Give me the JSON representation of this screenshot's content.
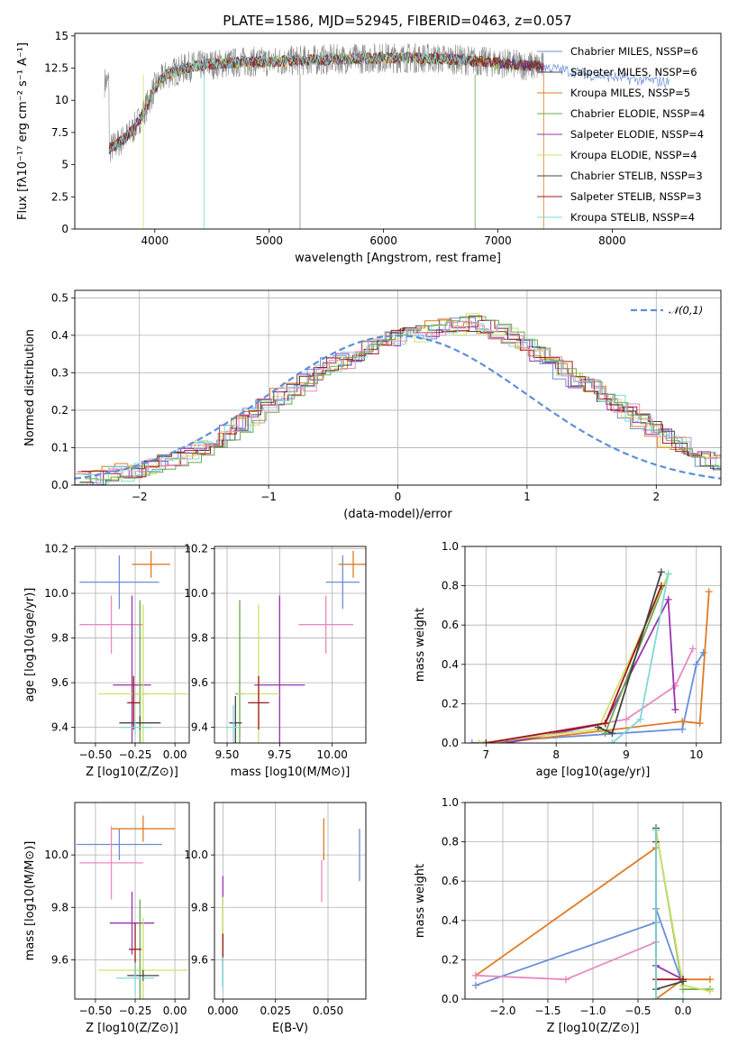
{
  "figure": {
    "title": "PLATE=1586, MJD=52945, FIBERID=0463, z=0.057"
  },
  "colors": {
    "Chabrier MILES": "#6a8fd8",
    "Salpeter MILES": "#4a4a4a",
    "Kroupa MILES": "#e07b24",
    "Chabrier ELODIE": "#6aa84f",
    "Salpeter ELODIE": "#9a32b0",
    "Kroupa ELODIE": "#cfe06a",
    "Chabrier STELIB": "#444444",
    "Salpeter STELIB": "#a01818",
    "Kroupa STELIB": "#7fd8d8",
    "data": "#8a8a8a",
    "gauss": "#5b8fd8"
  },
  "chart_data": [
    {
      "id": "spectrum",
      "type": "line",
      "title": "PLATE=1586, MJD=52945, FIBERID=0463, z=0.057",
      "xlabel": "wavelength [Angstrom, rest frame]",
      "ylabel": "Flux [fλ10⁻¹⁷ erg cm⁻² s⁻¹ A⁻¹]",
      "xlim": [
        3300,
        8950
      ],
      "ylim": [
        0,
        15.2
      ],
      "xticks": [
        4000,
        5000,
        6000,
        7000,
        8000
      ],
      "yticks": [
        0.0,
        2.5,
        5.0,
        7.5,
        10.0,
        12.5,
        15.0
      ],
      "grid": false,
      "legend_position": "top-right",
      "legend": [
        "Chabrier MILES, NSSP=6",
        "Salpeter MILES, NSSP=6",
        "Kroupa MILES, NSSP=5",
        "Chabrier ELODIE, NSSP=4",
        "Salpeter ELODIE, NSSP=4",
        "Kroupa ELODIE, NSSP=4",
        "Chabrier STELIB, NSSP=3",
        "Salpeter STELIB, NSSP=3",
        "Kroupa STELIB, NSSP=4"
      ],
      "continuum": [
        [
          3600,
          6.2
        ],
        [
          3700,
          6.8
        ],
        [
          3800,
          7.6
        ],
        [
          3900,
          9.0
        ],
        [
          4000,
          11.0
        ],
        [
          4100,
          12.0
        ],
        [
          4300,
          12.6
        ],
        [
          4500,
          12.8
        ],
        [
          4800,
          13.0
        ],
        [
          5000,
          13.0
        ],
        [
          5300,
          13.1
        ],
        [
          5600,
          13.2
        ],
        [
          6000,
          13.3
        ],
        [
          6300,
          13.3
        ],
        [
          6600,
          13.2
        ],
        [
          7000,
          12.9
        ],
        [
          7400,
          12.6
        ],
        [
          7800,
          12.0
        ],
        [
          8200,
          11.6
        ],
        [
          8500,
          11.4
        ]
      ],
      "model_ranges": [
        [
          3600,
          8500
        ],
        [
          3600,
          7400
        ],
        [
          3600,
          7000
        ],
        [
          3600,
          7400
        ],
        [
          3600,
          7400
        ],
        [
          3900,
          7000
        ],
        [
          3600,
          7400
        ],
        [
          3600,
          7400
        ],
        [
          3600,
          6800
        ]
      ],
      "data_range": [
        3560,
        7400
      ]
    },
    {
      "id": "residuals",
      "type": "line",
      "xlabel": "(data-model)/error",
      "ylabel": "Normed distribution",
      "xlim": [
        -2.5,
        2.5
      ],
      "ylim": [
        0,
        0.52
      ],
      "xticks": [
        -2,
        -1,
        0,
        1,
        2
      ],
      "yticks": [
        0.0,
        0.1,
        0.2,
        0.3,
        0.4,
        0.5
      ],
      "grid": true,
      "legend_position": "top-right",
      "legend": [
        "𝒩(0,1)"
      ],
      "bin_width": 0.1,
      "bin_start": -2.5,
      "histograms": [
        [
          0.02,
          0.02,
          0.03,
          0.03,
          0.04,
          0.05,
          0.06,
          0.07,
          0.08,
          0.1,
          0.12,
          0.14,
          0.16,
          0.19,
          0.21,
          0.23,
          0.25,
          0.28,
          0.3,
          0.32,
          0.34,
          0.35,
          0.37,
          0.38,
          0.39,
          0.4,
          0.41,
          0.41,
          0.42,
          0.43,
          0.43,
          0.42,
          0.41,
          0.39,
          0.37,
          0.35,
          0.32,
          0.3,
          0.28,
          0.27,
          0.24,
          0.22,
          0.19,
          0.17,
          0.15,
          0.13,
          0.11,
          0.09,
          0.07,
          0.06
        ],
        [
          0.02,
          0.02,
          0.03,
          0.04,
          0.04,
          0.05,
          0.06,
          0.07,
          0.09,
          0.1,
          0.12,
          0.14,
          0.17,
          0.18,
          0.21,
          0.24,
          0.26,
          0.27,
          0.3,
          0.32,
          0.33,
          0.36,
          0.37,
          0.38,
          0.4,
          0.4,
          0.4,
          0.42,
          0.43,
          0.42,
          0.44,
          0.42,
          0.41,
          0.4,
          0.38,
          0.35,
          0.33,
          0.31,
          0.28,
          0.26,
          0.25,
          0.21,
          0.2,
          0.17,
          0.15,
          0.12,
          0.11,
          0.09,
          0.08,
          0.06
        ]
      ]
    },
    {
      "id": "age-vs-Z",
      "type": "scatter",
      "xlabel": "Z [log10(Z/Z⊙)]",
      "ylabel": "age  [log10(age/yr)]",
      "xlim": [
        -0.63,
        0.09
      ],
      "ylim": [
        9.33,
        10.21
      ],
      "xticks": [
        -0.5,
        -0.25,
        0.0
      ],
      "yticks": [
        9.4,
        9.6,
        9.8,
        10.0,
        10.2
      ],
      "grid": true,
      "points": [
        {
          "x": -0.35,
          "y": 10.05,
          "xerr": 0.25,
          "yerr": 0.12,
          "color": "#6a8fd8"
        },
        {
          "x": -0.15,
          "y": 10.13,
          "xerr": 0.12,
          "yerr": 0.06,
          "color": "#e07b24"
        },
        {
          "x": -0.4,
          "y": 9.86,
          "xerr": 0.2,
          "yerr": 0.13,
          "color": "#e88ac0"
        },
        {
          "x": -0.27,
          "y": 9.59,
          "xerr": 0.12,
          "yerr": 0.4,
          "color": "#9a32b0"
        },
        {
          "x": -0.22,
          "y": 9.55,
          "xerr": 0.05,
          "yerr": 0.42,
          "color": "#6aa84f"
        },
        {
          "x": -0.2,
          "y": 9.55,
          "xerr": 0.28,
          "yerr": 0.4,
          "color": "#cfe06a"
        },
        {
          "x": -0.26,
          "y": 9.51,
          "xerr": 0.04,
          "yerr": 0.12,
          "color": "#a01818"
        },
        {
          "x": -0.22,
          "y": 9.42,
          "xerr": 0.13,
          "yerr": 0.03,
          "color": "#444444"
        },
        {
          "x": -0.25,
          "y": 9.4,
          "xerr": 0.1,
          "yerr": 0.03,
          "color": "#7fd8d8"
        }
      ]
    },
    {
      "id": "age-vs-mass",
      "type": "scatter",
      "xlabel": "mass [log10(M/M⊙)]",
      "ylabel": "",
      "xlim": [
        9.44,
        10.16
      ],
      "ylim": [
        9.33,
        10.21
      ],
      "xticks": [
        9.5,
        9.75,
        10.0
      ],
      "yticks": [
        9.4,
        9.6,
        9.8,
        10.0,
        10.2
      ],
      "grid": true,
      "points": [
        {
          "x": 10.05,
          "y": 10.05,
          "xerr": 0.08,
          "yerr": 0.12,
          "color": "#6a8fd8"
        },
        {
          "x": 10.1,
          "y": 10.13,
          "xerr": 0.07,
          "yerr": 0.06,
          "color": "#e07b24"
        },
        {
          "x": 9.97,
          "y": 9.86,
          "xerr": 0.13,
          "yerr": 0.13,
          "color": "#e88ac0"
        },
        {
          "x": 9.75,
          "y": 9.59,
          "xerr": 0.12,
          "yerr": 0.4,
          "color": "#9a32b0"
        },
        {
          "x": 9.56,
          "y": 9.55,
          "xerr": 0.02,
          "yerr": 0.42,
          "color": "#6aa84f"
        },
        {
          "x": 9.65,
          "y": 9.55,
          "xerr": 0.1,
          "yerr": 0.4,
          "color": "#cfe06a"
        },
        {
          "x": 9.65,
          "y": 9.51,
          "xerr": 0.05,
          "yerr": 0.12,
          "color": "#a01818"
        },
        {
          "x": 9.54,
          "y": 9.42,
          "xerr": 0.03,
          "yerr": 0.12,
          "color": "#444444"
        },
        {
          "x": 9.53,
          "y": 9.4,
          "xerr": 0.03,
          "yerr": 0.1,
          "color": "#7fd8d8"
        }
      ]
    },
    {
      "id": "weight-vs-age",
      "type": "line",
      "xlabel": "age  [log10(age/yr)]",
      "ylabel": "mass weight",
      "xlim": [
        6.7,
        10.35
      ],
      "ylim": [
        0,
        1.0
      ],
      "xticks": [
        7,
        8,
        9,
        10
      ],
      "yticks": [
        0.0,
        0.2,
        0.4,
        0.6,
        0.8,
        1.0
      ],
      "grid": true,
      "series": [
        {
          "color": "#6a8fd8",
          "points": [
            [
              6.8,
              0.0
            ],
            [
              9.8,
              0.07
            ],
            [
              10.0,
              0.4
            ],
            [
              10.1,
              0.46
            ]
          ]
        },
        {
          "color": "#e07b24",
          "points": [
            [
              7.2,
              0.0
            ],
            [
              9.8,
              0.11
            ],
            [
              10.05,
              0.1
            ],
            [
              10.18,
              0.77
            ]
          ]
        },
        {
          "color": "#e88ac0",
          "points": [
            [
              7.0,
              0.0
            ],
            [
              9.0,
              0.12
            ],
            [
              9.7,
              0.29
            ],
            [
              9.95,
              0.48
            ]
          ]
        },
        {
          "color": "#9a32b0",
          "points": [
            [
              7.3,
              0.0
            ],
            [
              8.7,
              0.1
            ],
            [
              9.6,
              0.73
            ],
            [
              9.7,
              0.17
            ]
          ]
        },
        {
          "color": "#6aa84f",
          "points": [
            [
              8.7,
              0.05
            ],
            [
              9.6,
              0.86
            ]
          ]
        },
        {
          "color": "#cfe06a",
          "points": [
            [
              6.9,
              0.0
            ],
            [
              8.6,
              0.07
            ],
            [
              9.6,
              0.86
            ]
          ]
        },
        {
          "color": "#a01818",
          "points": [
            [
              7.0,
              0.0
            ],
            [
              8.7,
              0.1
            ],
            [
              9.5,
              0.8
            ]
          ]
        },
        {
          "color": "#444444",
          "points": [
            [
              8.6,
              0.08
            ],
            [
              8.8,
              0.05
            ],
            [
              9.5,
              0.87
            ]
          ]
        },
        {
          "color": "#7fd8d8",
          "points": [
            [
              8.8,
              0.0
            ],
            [
              9.2,
              0.12
            ],
            [
              9.6,
              0.86
            ]
          ]
        }
      ]
    },
    {
      "id": "mass-vs-Z",
      "type": "scatter",
      "xlabel": "Z [log10(Z/Z⊙)]",
      "ylabel": "mass [log10(M/M⊙)]",
      "xlim": [
        -0.63,
        0.09
      ],
      "ylim": [
        9.45,
        10.2
      ],
      "xticks": [
        -0.5,
        -0.25,
        0.0
      ],
      "yticks": [
        9.6,
        9.8,
        10.0
      ],
      "grid": true,
      "points": [
        {
          "x": -0.35,
          "y": 10.04,
          "xerr": 0.27,
          "yerr": 0.06,
          "color": "#6a8fd8"
        },
        {
          "x": -0.2,
          "y": 10.1,
          "xerr": 0.2,
          "yerr": 0.05,
          "color": "#e07b24"
        },
        {
          "x": -0.4,
          "y": 9.97,
          "xerr": 0.2,
          "yerr": 0.14,
          "color": "#e88ac0"
        },
        {
          "x": -0.27,
          "y": 9.74,
          "xerr": 0.14,
          "yerr": 0.12,
          "color": "#9a32b0"
        },
        {
          "x": -0.22,
          "y": 9.56,
          "xerr": 0.02,
          "yerr": 0.27,
          "color": "#6aa84f"
        },
        {
          "x": -0.2,
          "y": 9.56,
          "xerr": 0.28,
          "yerr": 0.2,
          "color": "#cfe06a"
        },
        {
          "x": -0.25,
          "y": 9.64,
          "xerr": 0.04,
          "yerr": 0.1,
          "color": "#a01818"
        },
        {
          "x": -0.2,
          "y": 9.54,
          "xerr": 0.1,
          "yerr": 0.02,
          "color": "#444444"
        },
        {
          "x": -0.25,
          "y": 9.53,
          "xerr": 0.12,
          "yerr": 0.06,
          "color": "#7fd8d8"
        }
      ]
    },
    {
      "id": "mass-vs-EBV",
      "type": "scatter",
      "xlabel": "E(B-V)",
      "ylabel": "",
      "xlim": [
        -0.004,
        0.068
      ],
      "ylim": [
        9.45,
        10.2
      ],
      "xticks": [
        0.0,
        0.025,
        0.05
      ],
      "yticks": [
        9.6,
        9.8,
        10.0
      ],
      "grid": true,
      "points": [
        {
          "x": 0.065,
          "y": 10.0,
          "xerr": 0.0,
          "yerr": 0.1,
          "color": "#6a8fd8"
        },
        {
          "x": 0.048,
          "y": 10.06,
          "xerr": 0.0,
          "yerr": 0.08,
          "color": "#e07b24"
        },
        {
          "x": 0.047,
          "y": 9.9,
          "xerr": 0.0,
          "yerr": 0.08,
          "color": "#e88ac0"
        },
        {
          "x": 0.0,
          "y": 9.8,
          "xerr": 0.0,
          "yerr": 0.12,
          "color": "#9a32b0"
        },
        {
          "x": 0.0,
          "y": 9.7,
          "xerr": 0.0,
          "yerr": 0.1,
          "color": "#6aa84f"
        },
        {
          "x": 0.0,
          "y": 9.74,
          "xerr": 0.0,
          "yerr": 0.1,
          "color": "#cfe06a"
        },
        {
          "x": 0.0,
          "y": 9.64,
          "xerr": 0.0,
          "yerr": 0.06,
          "color": "#a01818"
        },
        {
          "x": 0.0,
          "y": 9.55,
          "xerr": 0.0,
          "yerr": 0.05,
          "color": "#444444"
        },
        {
          "x": 0.0,
          "y": 9.55,
          "xerr": 0.0,
          "yerr": 0.06,
          "color": "#7fd8d8"
        }
      ]
    },
    {
      "id": "weight-vs-Z",
      "type": "line",
      "xlabel": "Z [log10(Z/Z⊙)]",
      "ylabel": "mass weight",
      "xlim": [
        -2.42,
        0.42
      ],
      "ylim": [
        0,
        1.0
      ],
      "xticks": [
        -2.0,
        -1.5,
        -1.0,
        -0.5,
        0.0
      ],
      "yticks": [
        0.0,
        0.2,
        0.4,
        0.6,
        0.8,
        1.0
      ],
      "grid": true,
      "series": [
        {
          "color": "#6a8fd8",
          "points": [
            [
              -2.3,
              0.07
            ],
            [
              -0.3,
              0.39
            ],
            [
              -0.3,
              0.46
            ],
            [
              0.0,
              0.07
            ]
          ]
        },
        {
          "color": "#e07b24",
          "points": [
            [
              -2.3,
              0.12
            ],
            [
              -0.3,
              0.77
            ],
            [
              -0.3,
              0.0
            ],
            [
              0.0,
              0.1
            ],
            [
              0.3,
              0.1
            ]
          ]
        },
        {
          "color": "#e88ac0",
          "points": [
            [
              -2.3,
              0.12
            ],
            [
              -1.3,
              0.1
            ],
            [
              -0.3,
              0.29
            ],
            [
              -0.3,
              0.0
            ]
          ]
        },
        {
          "color": "#9a32b0",
          "points": [
            [
              -0.3,
              0.17
            ],
            [
              0.0,
              0.1
            ]
          ]
        },
        {
          "color": "#6aa84f",
          "points": [
            [
              -0.3,
              0.86
            ],
            [
              0.0,
              0.05
            ],
            [
              0.3,
              0.05
            ]
          ]
        },
        {
          "color": "#cfe06a",
          "points": [
            [
              -0.3,
              0.86
            ],
            [
              0.0,
              0.07
            ],
            [
              0.3,
              0.04
            ]
          ]
        },
        {
          "color": "#a01818",
          "points": [
            [
              -0.3,
              0.8
            ],
            [
              -0.3,
              0.1
            ],
            [
              0.0,
              0.1
            ]
          ]
        },
        {
          "color": "#444444",
          "points": [
            [
              -0.3,
              0.87
            ],
            [
              -0.3,
              0.05
            ],
            [
              0.0,
              0.09
            ]
          ]
        },
        {
          "color": "#7fd8d8",
          "points": [
            [
              -0.3,
              0.86
            ],
            [
              -0.3,
              0.0
            ],
            [
              0.0,
              0.0
            ]
          ]
        }
      ]
    }
  ]
}
